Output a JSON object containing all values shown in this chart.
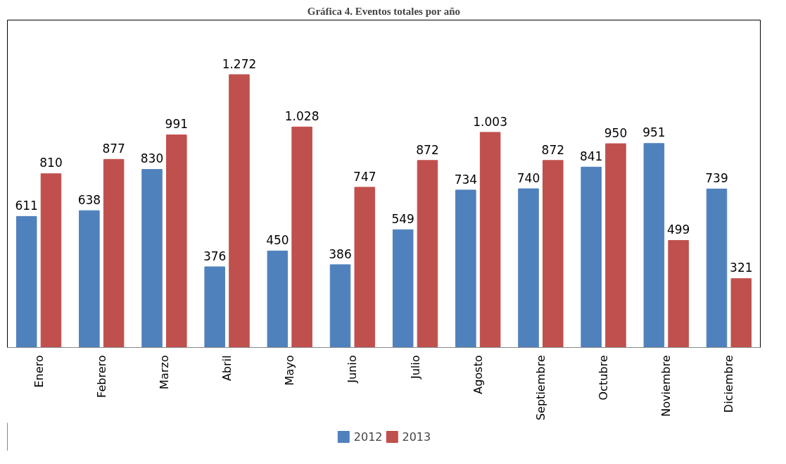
{
  "chart_data": {
    "type": "bar",
    "title": "Gráfica 4. Eventos totales por año",
    "categories": [
      "Enero",
      "Febrero",
      "Marzo",
      "Abril",
      "Mayo",
      "Junio",
      "Julio",
      "Agosto",
      "Septiembre",
      "Octubre",
      "Noviembre",
      "Diciembre"
    ],
    "series": [
      {
        "name": "2012",
        "color": "#4f81bd",
        "values": [
          611,
          638,
          830,
          376,
          450,
          386,
          549,
          734,
          740,
          841,
          951,
          739
        ],
        "value_labels": [
          "611",
          "638",
          "830",
          "376",
          "450",
          "386",
          "549",
          "734",
          "740",
          "841",
          "951",
          "739"
        ]
      },
      {
        "name": "2013",
        "color": "#c0504d",
        "values": [
          810,
          877,
          991,
          1272,
          1028,
          747,
          872,
          1003,
          872,
          950,
          499,
          321
        ],
        "value_labels": [
          "810",
          "877",
          "991",
          "1.272",
          "1.028",
          "747",
          "872",
          "1.003",
          "872",
          "950",
          "499",
          "321"
        ]
      }
    ],
    "legend": "bottom",
    "grid": false
  }
}
